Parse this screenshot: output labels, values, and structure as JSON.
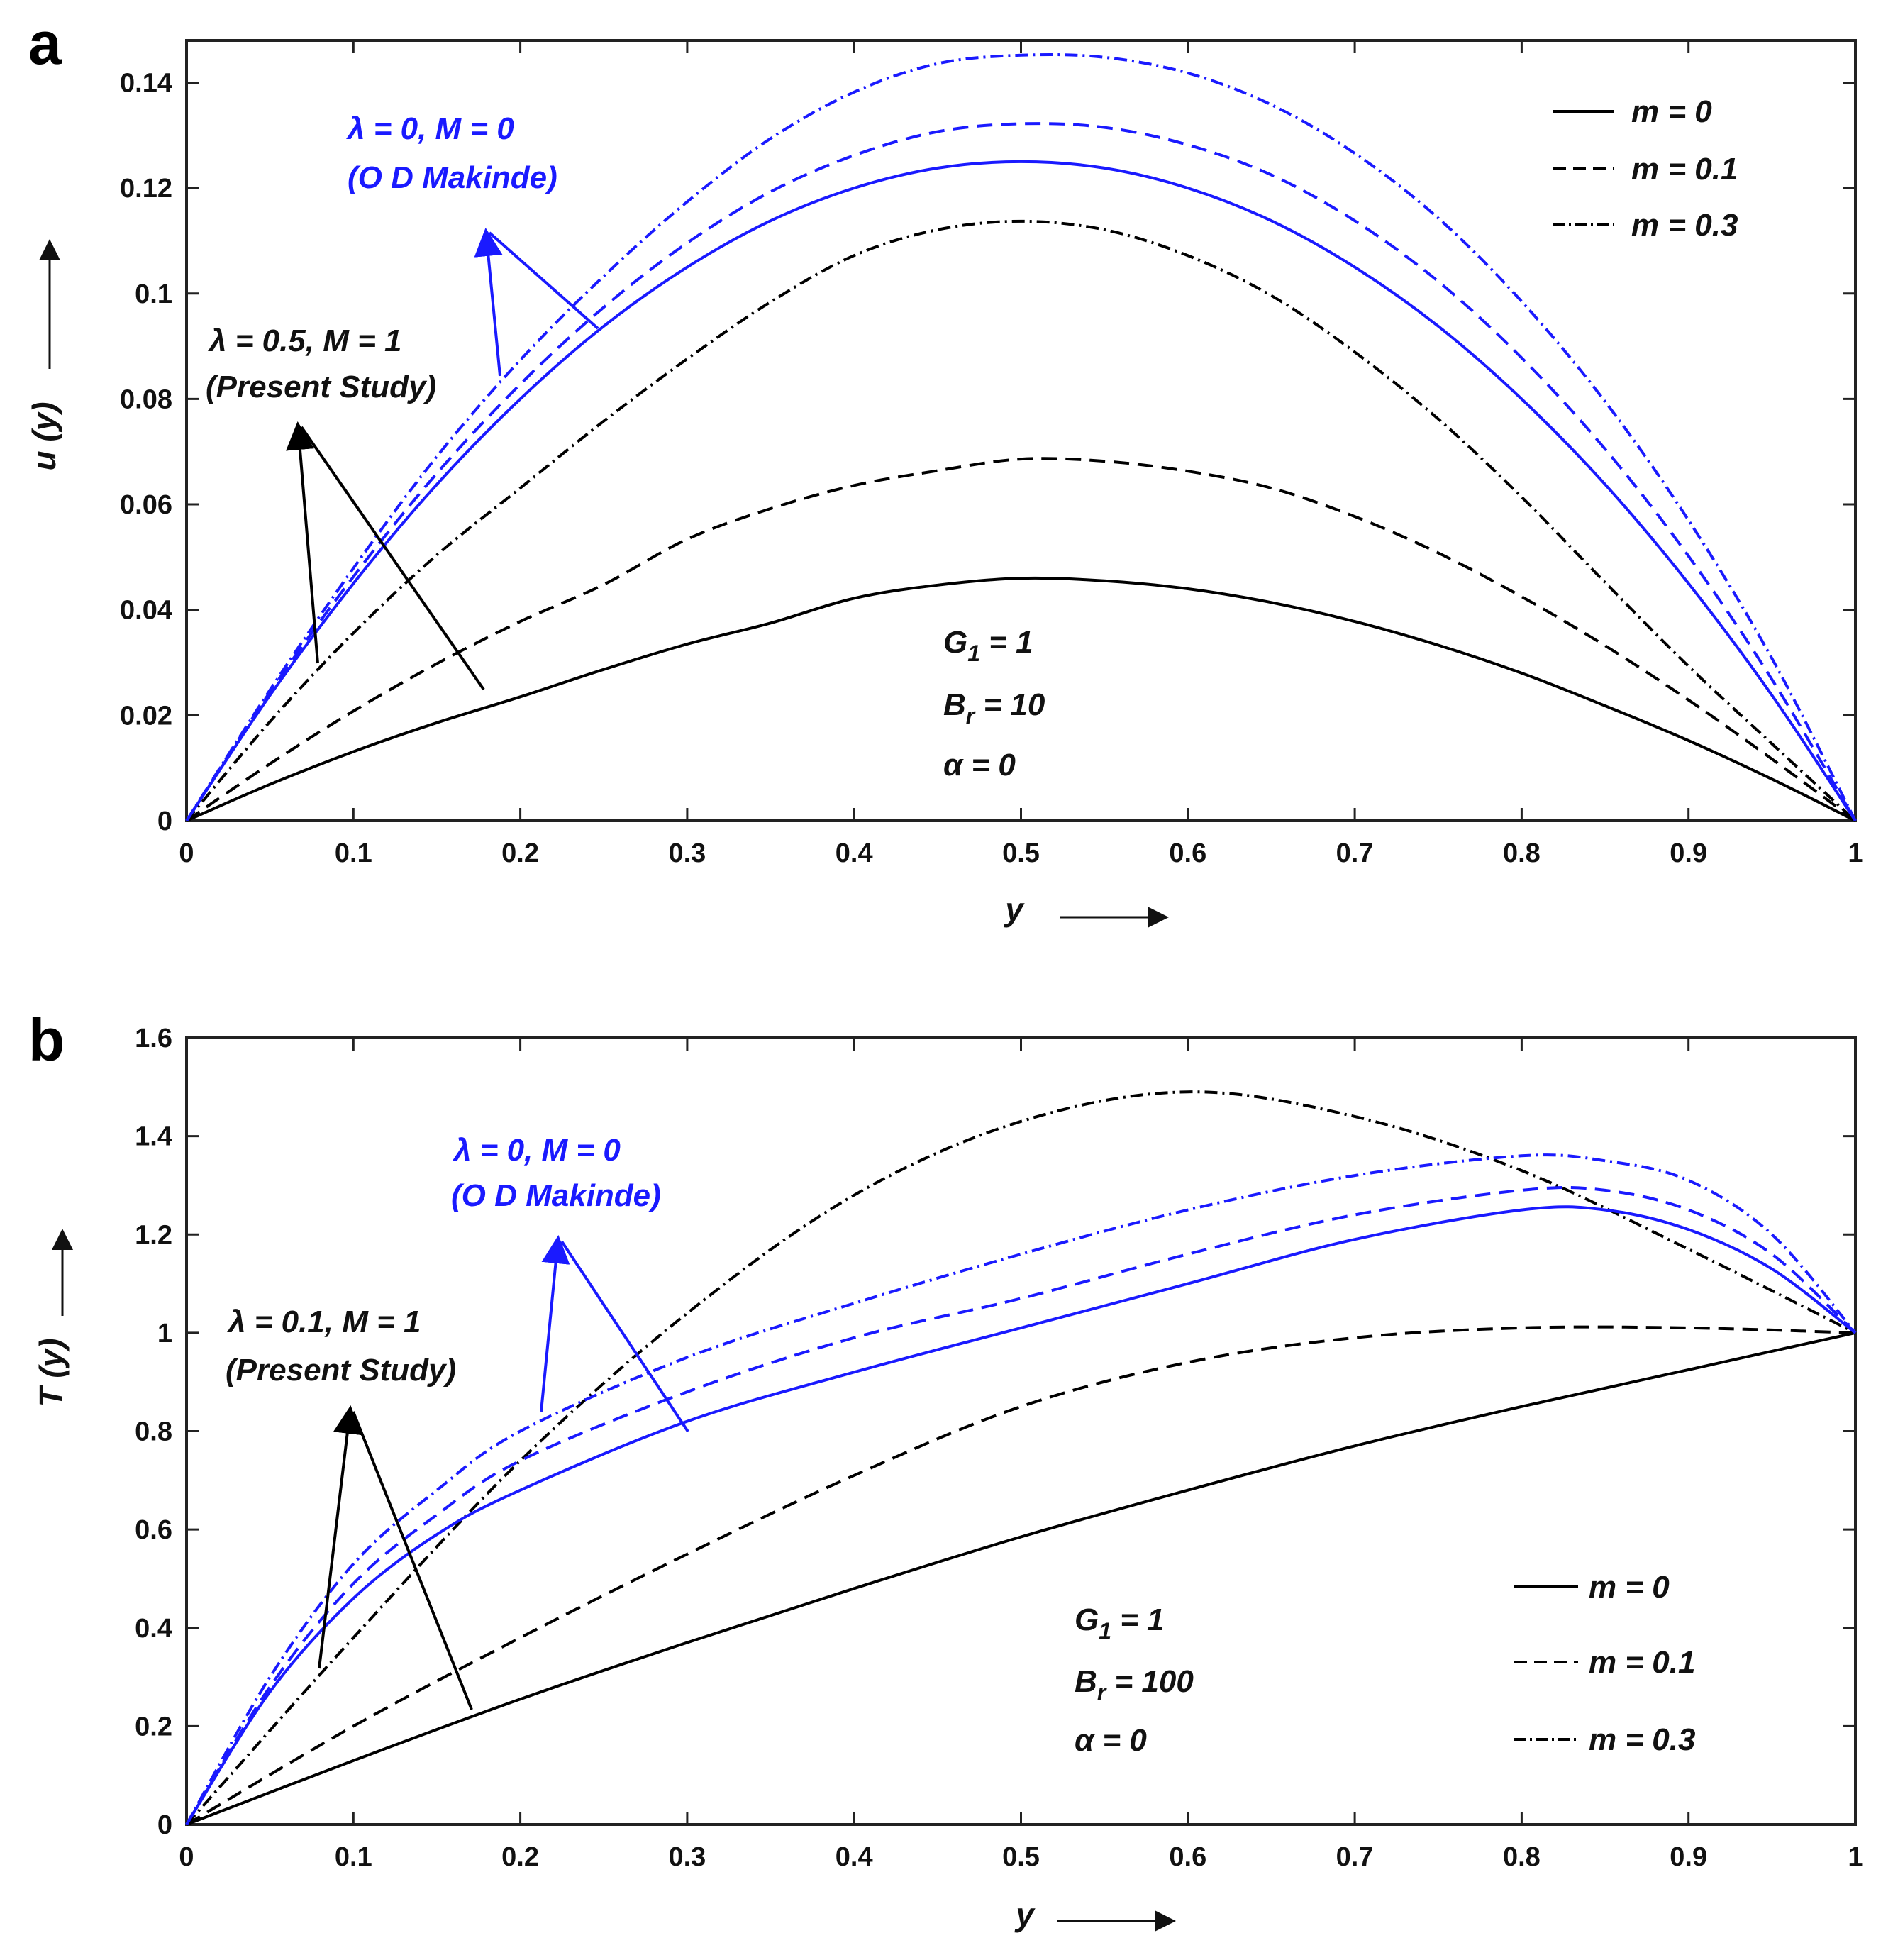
{
  "chart_data": [
    {
      "panel": "a",
      "type": "line",
      "xlabel": "y",
      "ylabel": "u (y)",
      "xlim": [
        0,
        1
      ],
      "ylim": [
        0,
        0.148
      ],
      "xticks": [
        0,
        0.1,
        0.2,
        0.3,
        0.4,
        0.5,
        0.6,
        0.7,
        0.8,
        0.9,
        1
      ],
      "xtick_labels": [
        "0",
        "0.1",
        "0.2",
        "0.3",
        "0.4",
        "0.5",
        "0.6",
        "0.7",
        "0.8",
        "0.9",
        "1"
      ],
      "yticks": [
        0,
        0.02,
        0.04,
        0.06,
        0.08,
        0.1,
        0.12,
        0.14
      ],
      "ytick_labels": [
        "0",
        "0.02",
        "0.04",
        "0.06",
        "0.08",
        "0.1",
        "0.12",
        "0.14"
      ],
      "legend": {
        "position": "top-right",
        "entries": [
          {
            "label": "m = 0",
            "dash": "solid"
          },
          {
            "label": "m = 0.1",
            "dash": "dashed"
          },
          {
            "label": "m = 0.3",
            "dash": "dashdot"
          }
        ]
      },
      "params": {
        "g": "G",
        "g_sub": "1",
        "g_val": " = 1",
        "b": "B",
        "b_sub": "r",
        "b_val": " = 10",
        "alpha": "α = 0"
      },
      "annotations": {
        "blue_line1": "λ = 0,  M = 0",
        "blue_line2": "(O D Makinde)",
        "black_line1": "λ = 0.5,  M = 1",
        "black_line2": "(Present Study)"
      },
      "series": [
        {
          "name": "λ = 0.5, M = 1, m = 0",
          "color": "#000000",
          "dash": "solid",
          "x": [
            0,
            0.05,
            0.1,
            0.15,
            0.2,
            0.25,
            0.3,
            0.35,
            0.4,
            0.45,
            0.5,
            0.55,
            0.6,
            0.65,
            0.7,
            0.75,
            0.8,
            0.85,
            0.9,
            0.95,
            1
          ],
          "y": [
            0,
            0.0069,
            0.0131,
            0.0186,
            0.0235,
            0.0287,
            0.0335,
            0.0375,
            0.0422,
            0.0447,
            0.046,
            0.0455,
            0.044,
            0.0414,
            0.0378,
            0.0333,
            0.028,
            0.0218,
            0.0152,
            0.0079,
            0
          ]
        },
        {
          "name": "λ = 0.5, M = 1, m = 0.1",
          "color": "#000000",
          "dash": "dashed",
          "x": [
            0,
            0.05,
            0.1,
            0.15,
            0.2,
            0.25,
            0.3,
            0.35,
            0.4,
            0.45,
            0.5,
            0.55,
            0.6,
            0.65,
            0.7,
            0.75,
            0.8,
            0.85,
            0.9,
            0.95,
            1
          ],
          "y": [
            0,
            0.0108,
            0.0208,
            0.0298,
            0.0378,
            0.0448,
            0.0534,
            0.0592,
            0.0636,
            0.0664,
            0.0686,
            0.0682,
            0.0663,
            0.0631,
            0.0577,
            0.0508,
            0.0425,
            0.0332,
            0.0229,
            0.0117,
            0
          ]
        },
        {
          "name": "λ = 0.5, M = 1, m = 0.3",
          "color": "#000000",
          "dash": "dashdot",
          "x": [
            0,
            0.05,
            0.1,
            0.15,
            0.2,
            0.25,
            0.3,
            0.35,
            0.4,
            0.45,
            0.5,
            0.55,
            0.6,
            0.65,
            0.7,
            0.75,
            0.8,
            0.85,
            0.9,
            0.95,
            1
          ],
          "y": [
            0,
            0.0188,
            0.0356,
            0.0504,
            0.0631,
            0.0758,
            0.0876,
            0.0984,
            0.1072,
            0.1121,
            0.1137,
            0.1121,
            0.1072,
            0.0996,
            0.0889,
            0.0762,
            0.0614,
            0.0452,
            0.0293,
            0.0146,
            0
          ]
        },
        {
          "name": "λ = 0, M = 0, m = 0",
          "color": "#1a1aff",
          "dash": "solid",
          "x": [
            0,
            0.05,
            0.1,
            0.15,
            0.2,
            0.25,
            0.3,
            0.35,
            0.4,
            0.45,
            0.5,
            0.55,
            0.6,
            0.65,
            0.7,
            0.75,
            0.8,
            0.85,
            0.9,
            0.95,
            1
          ],
          "y": [
            0,
            0.0238,
            0.045,
            0.0638,
            0.08,
            0.0938,
            0.105,
            0.1138,
            0.12,
            0.1238,
            0.125,
            0.1238,
            0.12,
            0.1138,
            0.105,
            0.0938,
            0.08,
            0.0638,
            0.045,
            0.0238,
            0
          ]
        },
        {
          "name": "λ = 0, M = 0, m = 0.1",
          "color": "#1a1aff",
          "dash": "dashed",
          "x": [
            0,
            0.05,
            0.1,
            0.15,
            0.2,
            0.25,
            0.3,
            0.35,
            0.4,
            0.45,
            0.5,
            0.55,
            0.6,
            0.65,
            0.7,
            0.75,
            0.8,
            0.85,
            0.9,
            0.95,
            1
          ],
          "y": [
            0,
            0.0244,
            0.0463,
            0.0659,
            0.0828,
            0.0974,
            0.1096,
            0.1193,
            0.1262,
            0.1307,
            0.1322,
            0.1315,
            0.1282,
            0.1225,
            0.1138,
            0.1023,
            0.0878,
            0.0705,
            0.0502,
            0.0268,
            0
          ]
        },
        {
          "name": "λ = 0, M = 0, m = 0.3",
          "color": "#1a1aff",
          "dash": "dashdot",
          "x": [
            0,
            0.05,
            0.1,
            0.15,
            0.2,
            0.25,
            0.3,
            0.35,
            0.4,
            0.45,
            0.5,
            0.55,
            0.6,
            0.65,
            0.7,
            0.75,
            0.8,
            0.85,
            0.9,
            0.95,
            1
          ],
          "y": [
            0,
            0.0248,
            0.0479,
            0.0691,
            0.0874,
            0.1033,
            0.1174,
            0.1294,
            0.1382,
            0.1436,
            0.1452,
            0.1448,
            0.1418,
            0.1358,
            0.1266,
            0.1143,
            0.0985,
            0.0795,
            0.057,
            0.0308,
            0
          ]
        }
      ]
    },
    {
      "panel": "b",
      "type": "line",
      "xlabel": "y",
      "ylabel": "T (y)",
      "xlim": [
        0,
        1
      ],
      "ylim": [
        0,
        1.6
      ],
      "xticks": [
        0,
        0.1,
        0.2,
        0.3,
        0.4,
        0.5,
        0.6,
        0.7,
        0.8,
        0.9,
        1
      ],
      "xtick_labels": [
        "0",
        "0.1",
        "0.2",
        "0.3",
        "0.4",
        "0.5",
        "0.6",
        "0.7",
        "0.8",
        "0.9",
        "1"
      ],
      "yticks": [
        0,
        0.2,
        0.4,
        0.6,
        0.8,
        1,
        1.2,
        1.4,
        1.6
      ],
      "ytick_labels": [
        "0",
        "0.2",
        "0.4",
        "0.6",
        "0.8",
        "1",
        "1.2",
        "1.4",
        "1.6"
      ],
      "legend": {
        "position": "bottom-right",
        "entries": [
          {
            "label": "m = 0",
            "dash": "solid"
          },
          {
            "label": "m = 0.1",
            "dash": "dashed"
          },
          {
            "label": "m = 0.3",
            "dash": "dashdot"
          }
        ]
      },
      "params": {
        "g": "G",
        "g_sub": "1",
        "g_val": " = 1",
        "b": "B",
        "b_sub": "r",
        "b_val": " = 100",
        "alpha": "α = 0"
      },
      "annotations": {
        "blue_line1": "λ = 0,  M = 0",
        "blue_line2": "(O D Makinde)",
        "black_line1": "λ = 0.1,  M = 1",
        "black_line2": "(Present Study)"
      },
      "series": [
        {
          "name": "λ = 0.1, M = 1, m = 0",
          "color": "#000000",
          "dash": "solid",
          "x": [
            0,
            0.1,
            0.2,
            0.3,
            0.4,
            0.5,
            0.6,
            0.7,
            0.8,
            0.9,
            1
          ],
          "y": [
            0,
            0.13,
            0.255,
            0.37,
            0.48,
            0.585,
            0.68,
            0.77,
            0.85,
            0.925,
            1.0
          ]
        },
        {
          "name": "λ = 0.1, M = 1, m = 0.1",
          "color": "#000000",
          "dash": "dashed",
          "x": [
            0,
            0.1,
            0.2,
            0.3,
            0.4,
            0.5,
            0.6,
            0.7,
            0.8,
            0.9,
            1
          ],
          "y": [
            0,
            0.2,
            0.38,
            0.55,
            0.71,
            0.85,
            0.94,
            0.99,
            1.01,
            1.01,
            1.0
          ]
        },
        {
          "name": "λ = 0.1, M = 1, m = 0.3",
          "color": "#000000",
          "dash": "dashdot",
          "x": [
            0,
            0.1,
            0.2,
            0.3,
            0.4,
            0.5,
            0.6,
            0.7,
            0.8,
            0.9,
            1
          ],
          "y": [
            0,
            0.38,
            0.74,
            1.04,
            1.28,
            1.43,
            1.49,
            1.44,
            1.33,
            1.17,
            1.0
          ]
        },
        {
          "name": "λ = 0, M = 0, m = 0",
          "color": "#1a1aff",
          "dash": "solid",
          "x": [
            0,
            0.05,
            0.1,
            0.15,
            0.2,
            0.3,
            0.4,
            0.5,
            0.6,
            0.7,
            0.8,
            0.85,
            0.9,
            0.95,
            1
          ],
          "y": [
            0,
            0.27,
            0.46,
            0.59,
            0.68,
            0.82,
            0.92,
            1.01,
            1.1,
            1.19,
            1.25,
            1.25,
            1.21,
            1.13,
            1.0
          ]
        },
        {
          "name": "λ = 0, M = 0, m = 0.1",
          "color": "#1a1aff",
          "dash": "dashed",
          "x": [
            0,
            0.05,
            0.1,
            0.15,
            0.2,
            0.3,
            0.4,
            0.5,
            0.6,
            0.7,
            0.8,
            0.85,
            0.9,
            0.95,
            1
          ],
          "y": [
            0,
            0.28,
            0.49,
            0.63,
            0.74,
            0.88,
            0.99,
            1.07,
            1.16,
            1.24,
            1.29,
            1.29,
            1.25,
            1.16,
            1.0
          ]
        },
        {
          "name": "λ = 0, M = 0, m = 0.3",
          "color": "#1a1aff",
          "dash": "dashdot",
          "x": [
            0,
            0.05,
            0.1,
            0.15,
            0.2,
            0.3,
            0.4,
            0.5,
            0.6,
            0.7,
            0.8,
            0.85,
            0.9,
            0.95,
            1
          ],
          "y": [
            0,
            0.3,
            0.53,
            0.68,
            0.8,
            0.95,
            1.06,
            1.16,
            1.25,
            1.32,
            1.36,
            1.35,
            1.31,
            1.2,
            1.0
          ]
        }
      ]
    }
  ]
}
